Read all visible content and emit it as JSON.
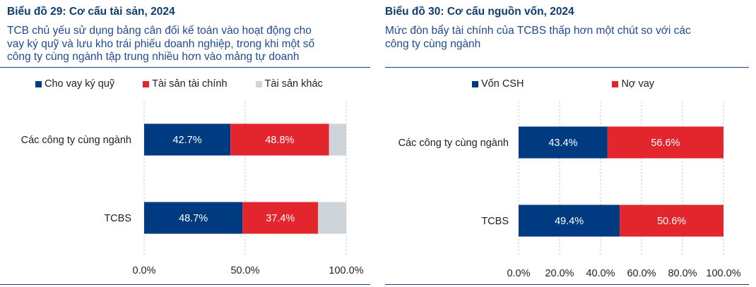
{
  "colors": {
    "blue": "#003a80",
    "red": "#e3262e",
    "gray": "#cfd4d9",
    "title": "#0f3d6e",
    "subtitle": "#1f4b8e",
    "rule": "#1a3f6a"
  },
  "left": {
    "title": "Biểu đồ 29: Cơ cấu tài sản, 2024",
    "subtitle": "TCB chủ yếu sử dụng bảng cân đối kế toán vào hoạt động cho\nvay ký quỹ và lưu kho trái phiếu doanh nghiệp, trong khi một số\ncông ty cùng ngành tập trung nhiều hơn vào mảng tự doanh",
    "legend": [
      "Cho vay ký quỹ",
      "Tài sản tài chính",
      "Tài sản khác"
    ]
  },
  "right": {
    "title": "Biểu đồ 30: Cơ cấu nguồn vốn, 2024",
    "subtitle": "Mức đòn bẩy tài chính của TCBS thấp hơn một chút so với các\ncông ty cùng ngành",
    "legend": [
      "Vốn CSH",
      "Nợ vay"
    ]
  },
  "chart_data": [
    {
      "type": "bar",
      "orientation": "horizontal",
      "stacked": true,
      "categories": [
        "Các công ty cùng ngành",
        "TCBS"
      ],
      "series": [
        {
          "name": "Cho vay ký quỹ",
          "values": [
            42.7,
            48.7
          ],
          "labels": [
            "42.7%",
            "48.7%"
          ],
          "color": "#003a80"
        },
        {
          "name": "Tài sản tài chính",
          "values": [
            48.8,
            37.4
          ],
          "labels": [
            "48.8%",
            "37.4%"
          ],
          "color": "#e3262e"
        },
        {
          "name": "Tài sản khác",
          "values": [
            8.5,
            13.9
          ],
          "labels": [
            "",
            ""
          ],
          "color": "#cfd4d9"
        }
      ],
      "xlim": [
        0,
        100
      ],
      "xticks": [
        "0.0%",
        "50.0%",
        "100.0%"
      ],
      "xtick_values": [
        0,
        50,
        100
      ],
      "grid": "vertical dashed",
      "legend_position": "top"
    },
    {
      "type": "bar",
      "orientation": "horizontal",
      "stacked": true,
      "categories": [
        "Các công ty cùng ngành",
        "TCBS"
      ],
      "series": [
        {
          "name": "Vốn CSH",
          "values": [
            43.4,
            49.4
          ],
          "labels": [
            "43.4%",
            "49.4%"
          ],
          "color": "#003a80"
        },
        {
          "name": "Nợ vay",
          "values": [
            56.6,
            50.6
          ],
          "labels": [
            "56.6%",
            "50.6%"
          ],
          "color": "#e3262e"
        }
      ],
      "xlim": [
        0,
        100
      ],
      "xticks": [
        "0.0%",
        "20.0%",
        "40.0%",
        "60.0%",
        "80.0%",
        "100.0%"
      ],
      "xtick_values": [
        0,
        20,
        40,
        60,
        80,
        100
      ],
      "grid": "vertical dashed",
      "legend_position": "top"
    }
  ]
}
